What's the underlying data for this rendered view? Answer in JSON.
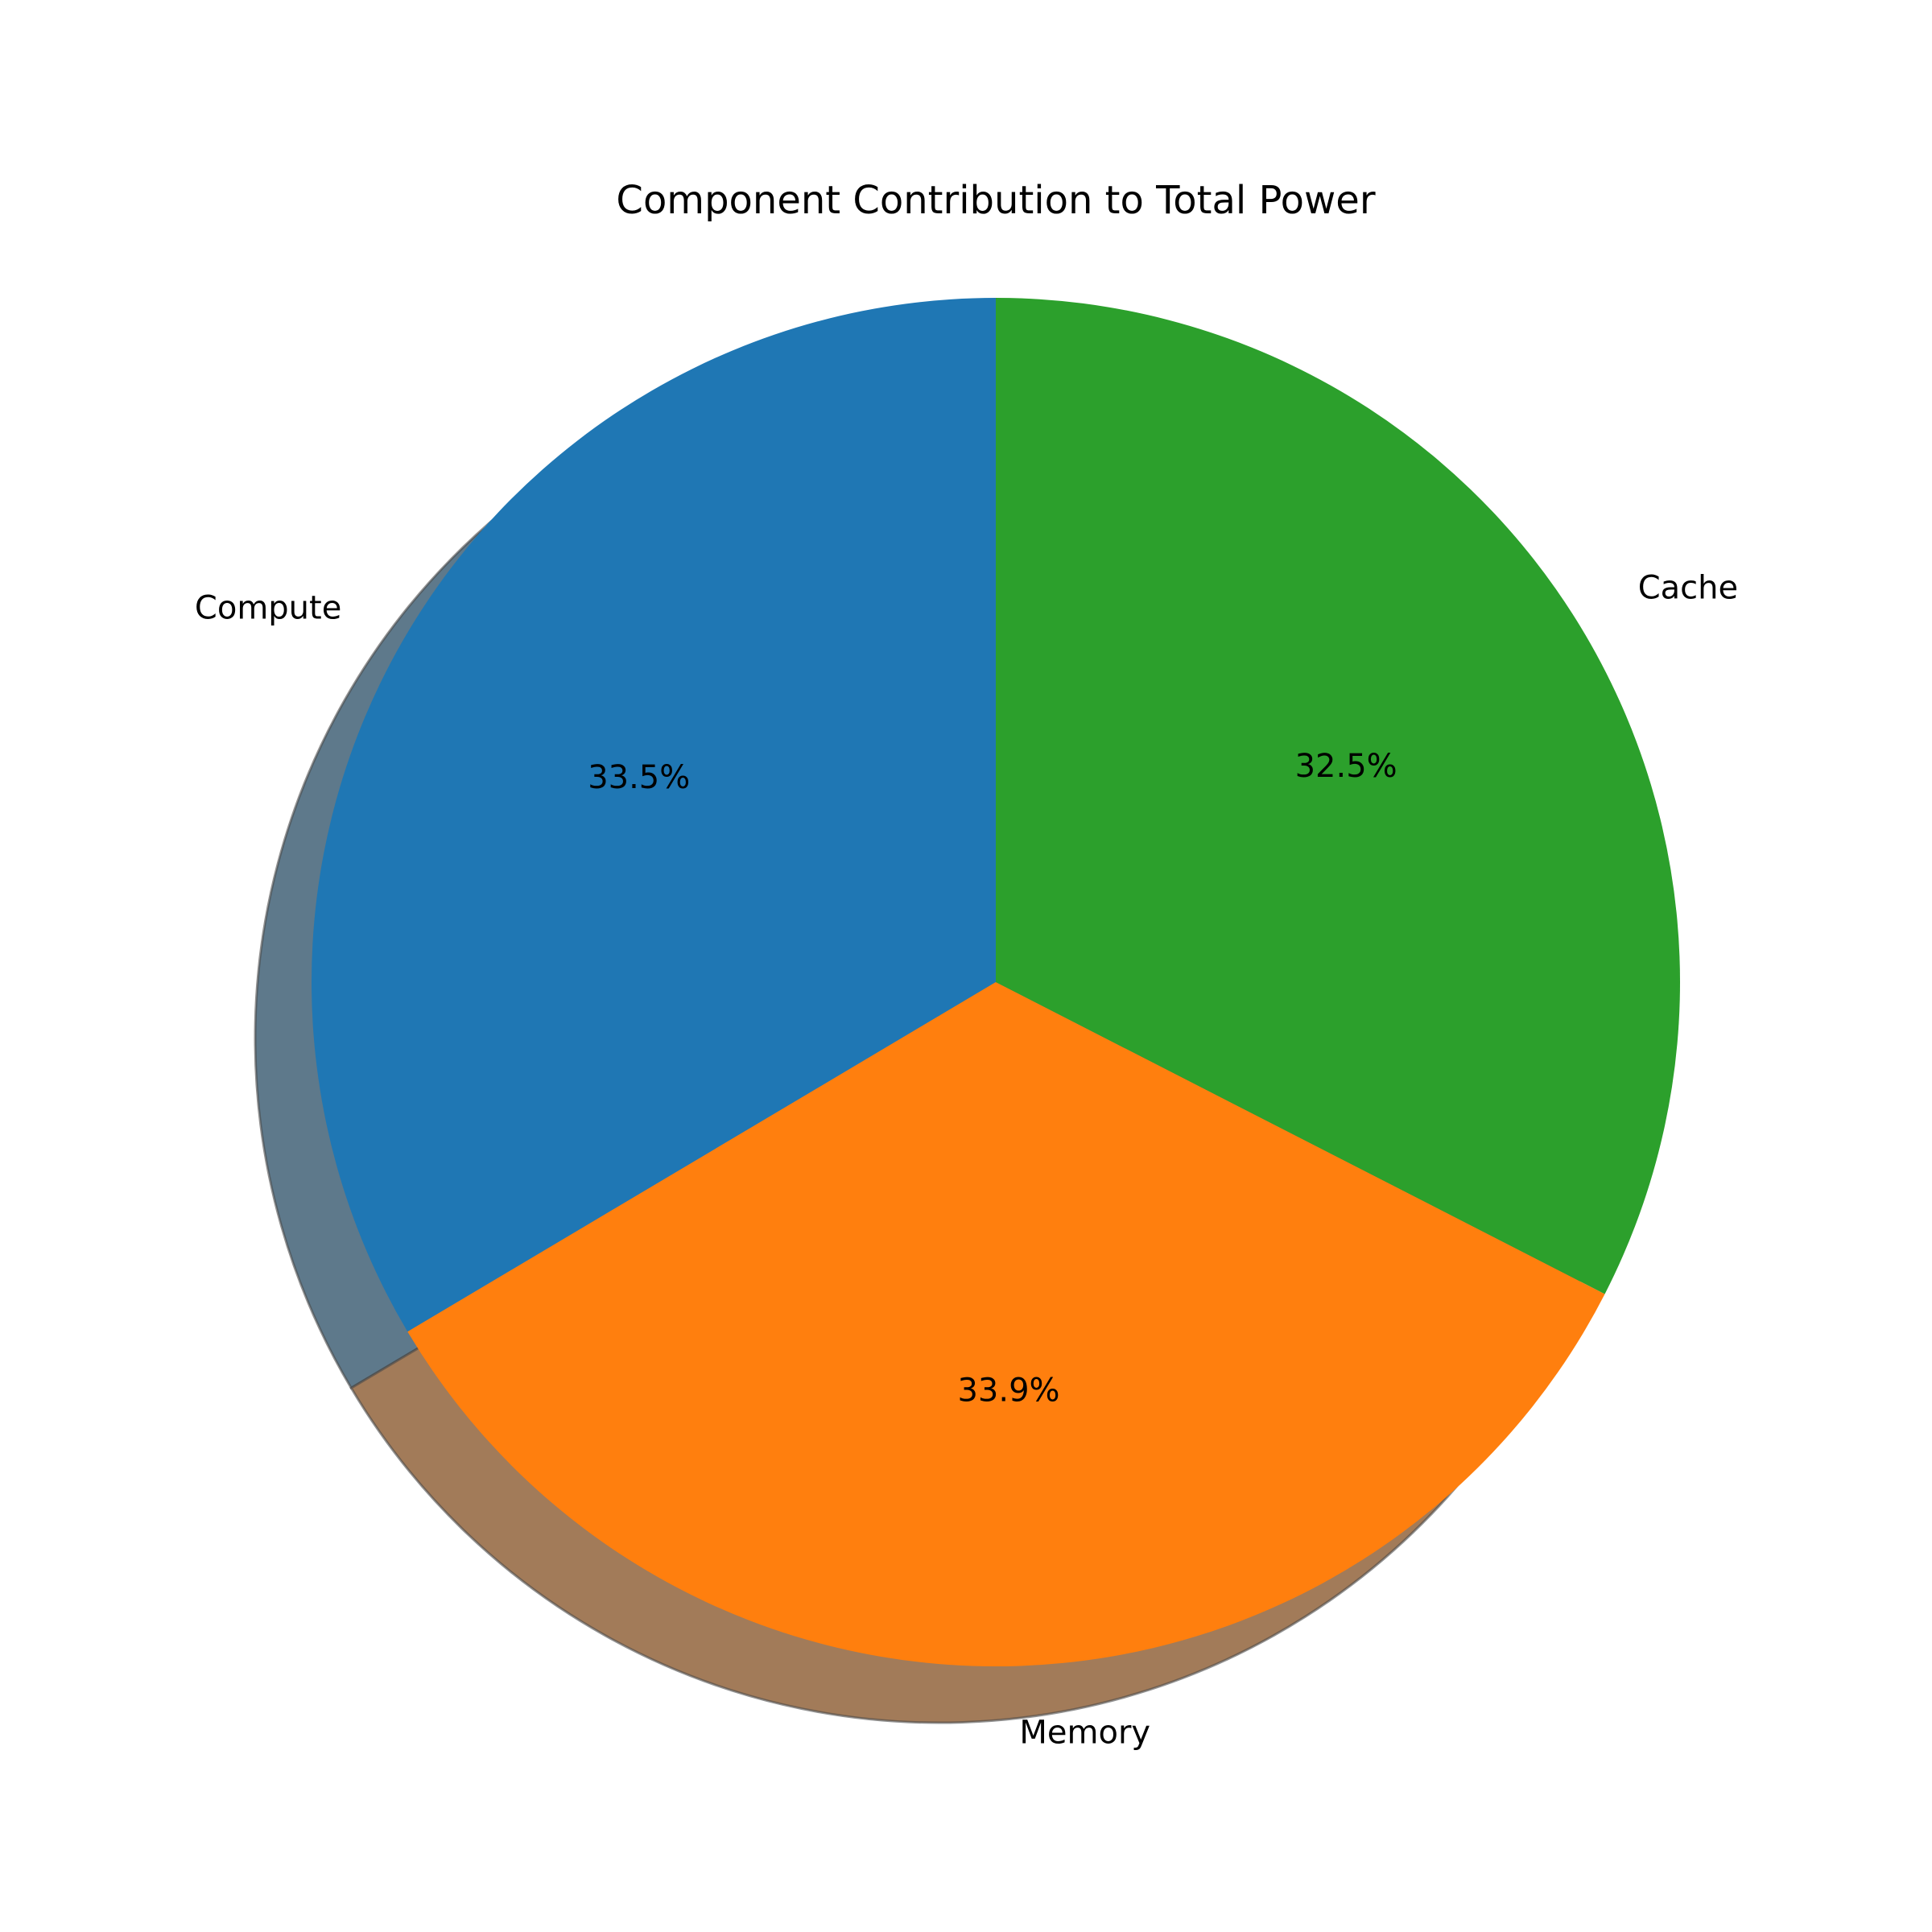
{
  "chart_data": {
    "type": "pie",
    "title": "Component Contribution to Total Power",
    "labels": [
      "Compute",
      "Memory",
      "Cache"
    ],
    "percent_labels": [
      "33.5%",
      "33.9%",
      "32.5%"
    ],
    "values": [
      33.5,
      33.9,
      32.5
    ],
    "colors": [
      "#1f77b4",
      "#ff7f0e",
      "#2ca02c"
    ],
    "start_angle_deg": 90,
    "direction": "counterclockwise",
    "shadow": true,
    "legend": false
  }
}
